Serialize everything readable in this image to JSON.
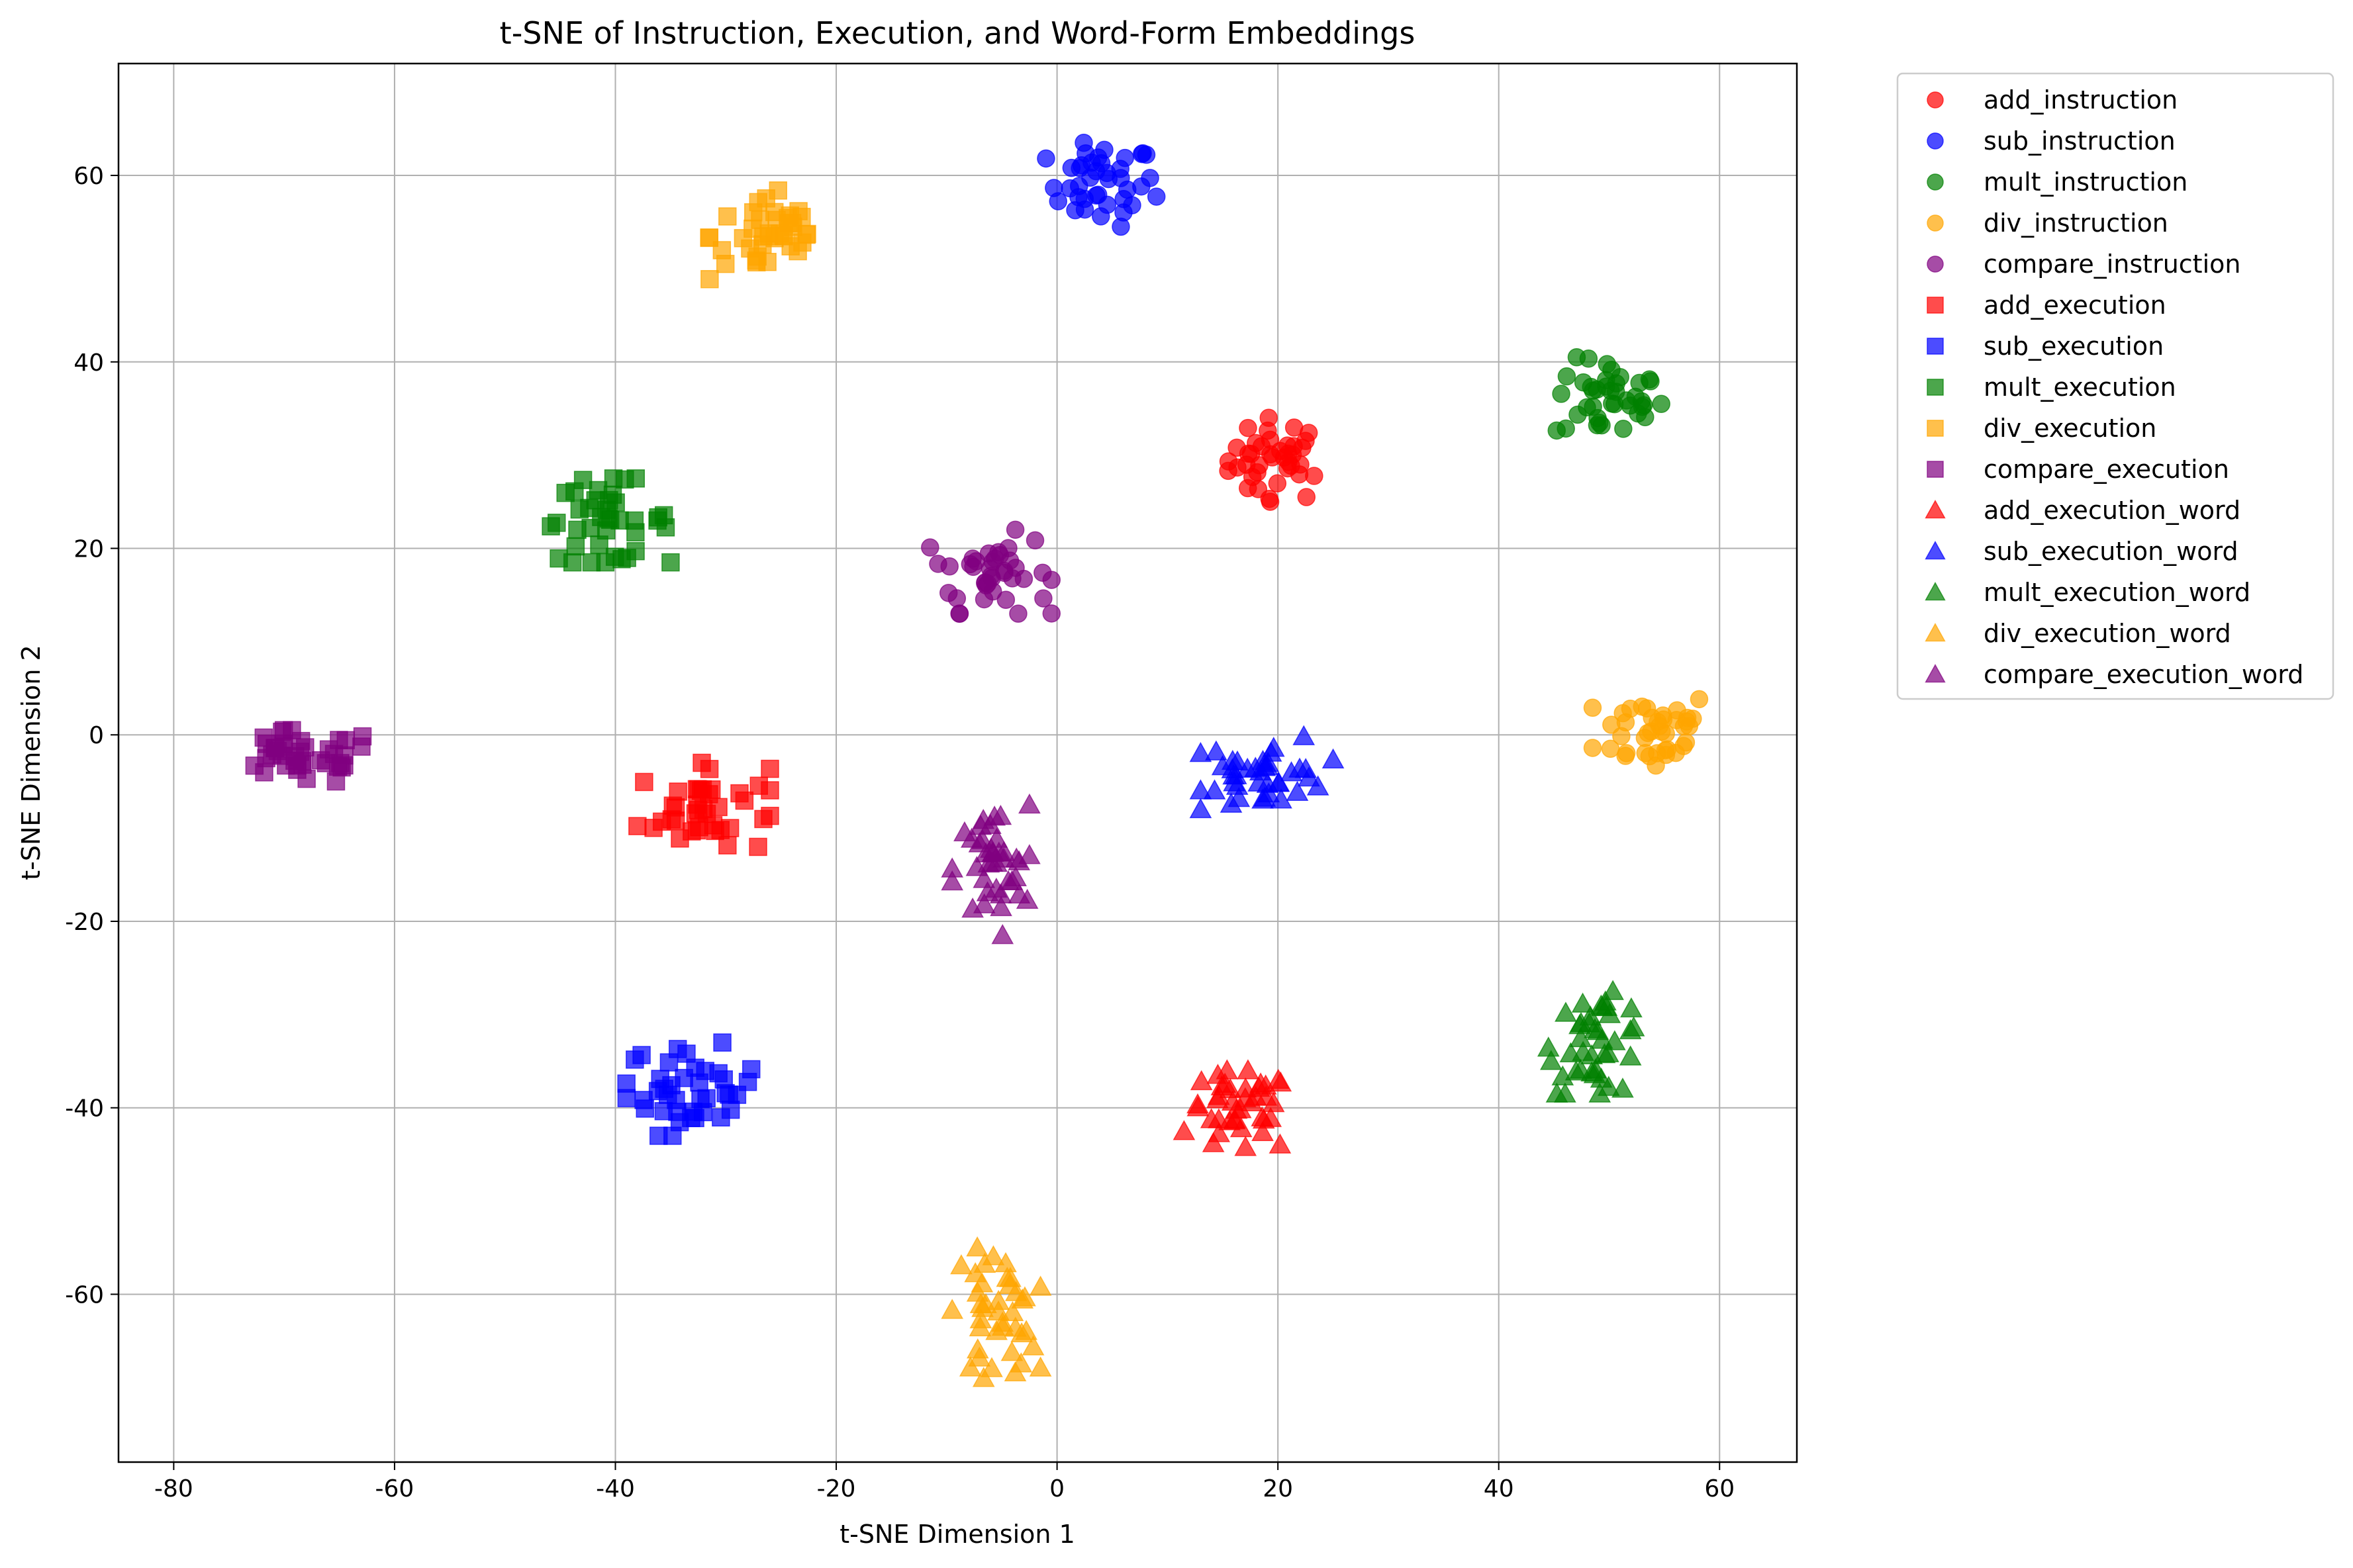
{
  "chart_data": {
    "type": "scatter",
    "title": "t-SNE of Instruction, Execution, and Word-Form Embeddings",
    "xlabel": "t-SNE Dimension 1",
    "ylabel": "t-SNE Dimension 2",
    "xlim": [
      -85,
      67
    ],
    "ylim": [
      -78,
      72
    ],
    "xticks": [
      -80,
      -60,
      -40,
      -20,
      0,
      20,
      40,
      60
    ],
    "yticks": [
      -60,
      -40,
      -20,
      0,
      20,
      40,
      60
    ],
    "grid": true,
    "legend_position": "outside right, top",
    "marker_alpha": 0.7,
    "series": [
      {
        "name": "add_instruction",
        "color": "#ff0000",
        "marker": "circle",
        "cx": 20,
        "cy": 29.5,
        "rx": 4.5,
        "ry": 4.5,
        "n": 40
      },
      {
        "name": "sub_instruction",
        "color": "#0000ff",
        "marker": "circle",
        "cx": 4,
        "cy": 59,
        "rx": 5,
        "ry": 4.5,
        "n": 40
      },
      {
        "name": "mult_instruction",
        "color": "#008000",
        "marker": "circle",
        "cx": 50,
        "cy": 36,
        "rx": 5,
        "ry": 4.5,
        "n": 40
      },
      {
        "name": "div_instruction",
        "color": "#ffa500",
        "marker": "circle",
        "cx": 54,
        "cy": 0.5,
        "rx": 5.5,
        "ry": 4.5,
        "n": 40
      },
      {
        "name": "compare_instruction",
        "color": "#800080",
        "marker": "circle",
        "cx": -6,
        "cy": 17.5,
        "rx": 5.5,
        "ry": 4.5,
        "n": 40
      },
      {
        "name": "add_execution",
        "color": "#ff0000",
        "marker": "square",
        "cx": -32,
        "cy": -8,
        "rx": 6,
        "ry": 5,
        "n": 40
      },
      {
        "name": "sub_execution",
        "color": "#0000ff",
        "marker": "square",
        "cx": -33,
        "cy": -38,
        "rx": 6,
        "ry": 5,
        "n": 40
      },
      {
        "name": "mult_execution",
        "color": "#008000",
        "marker": "square",
        "cx": -41,
        "cy": 23,
        "rx": 6,
        "ry": 4.5,
        "n": 40
      },
      {
        "name": "div_execution",
        "color": "#ffa500",
        "marker": "square",
        "cx": -26,
        "cy": 53.5,
        "rx": 5.5,
        "ry": 5,
        "n": 40
      },
      {
        "name": "compare_execution",
        "color": "#800080",
        "marker": "square",
        "cx": -68.5,
        "cy": -2.5,
        "rx": 7,
        "ry": 3,
        "n": 40
      },
      {
        "name": "add_execution_word",
        "color": "#ff0000",
        "marker": "triangle",
        "cx": 16.5,
        "cy": -40.5,
        "rx": 5,
        "ry": 4.5,
        "n": 40
      },
      {
        "name": "sub_execution_word",
        "color": "#0000ff",
        "marker": "triangle",
        "cx": 19,
        "cy": -4,
        "rx": 6,
        "ry": 4,
        "n": 40
      },
      {
        "name": "mult_execution_word",
        "color": "#008000",
        "marker": "triangle",
        "cx": 49,
        "cy": -33,
        "rx": 4.5,
        "ry": 5.5,
        "n": 40
      },
      {
        "name": "div_execution_word",
        "color": "#ffa500",
        "marker": "triangle",
        "cx": -5.5,
        "cy": -62,
        "rx": 4,
        "ry": 7,
        "n": 40
      },
      {
        "name": "compare_execution_word",
        "color": "#800080",
        "marker": "triangle",
        "cx": -6,
        "cy": -14.5,
        "rx": 3.5,
        "ry": 7,
        "n": 40
      }
    ]
  }
}
